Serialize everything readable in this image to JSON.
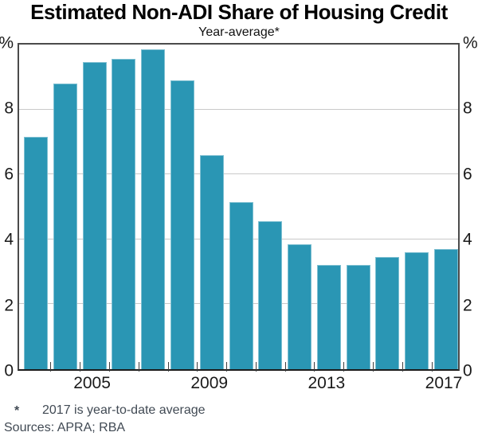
{
  "chart_data": {
    "type": "bar",
    "title": "Estimated Non-ADI Share of Housing Credit",
    "subtitle": "Year-average*",
    "categories": [
      2003,
      2004,
      2005,
      2006,
      2007,
      2008,
      2009,
      2010,
      2011,
      2012,
      2013,
      2014,
      2015,
      2016,
      2017
    ],
    "values": [
      7.15,
      8.8,
      9.45,
      9.55,
      9.85,
      8.9,
      6.6,
      5.15,
      4.55,
      3.85,
      3.2,
      3.2,
      3.45,
      3.6,
      3.7
    ],
    "ylim": [
      0,
      10
    ],
    "yticks": [
      0,
      2,
      4,
      6,
      8
    ],
    "y_axis_unit": "%",
    "x_tick_labels": [
      "2005",
      "2009",
      "2013",
      "2017"
    ],
    "bar_color": "#2a96b4",
    "grid": true,
    "legend": "none"
  },
  "footnote": {
    "marker": "*",
    "text": "2017 is year-to-date average"
  },
  "sources": "Sources: APRA; RBA"
}
